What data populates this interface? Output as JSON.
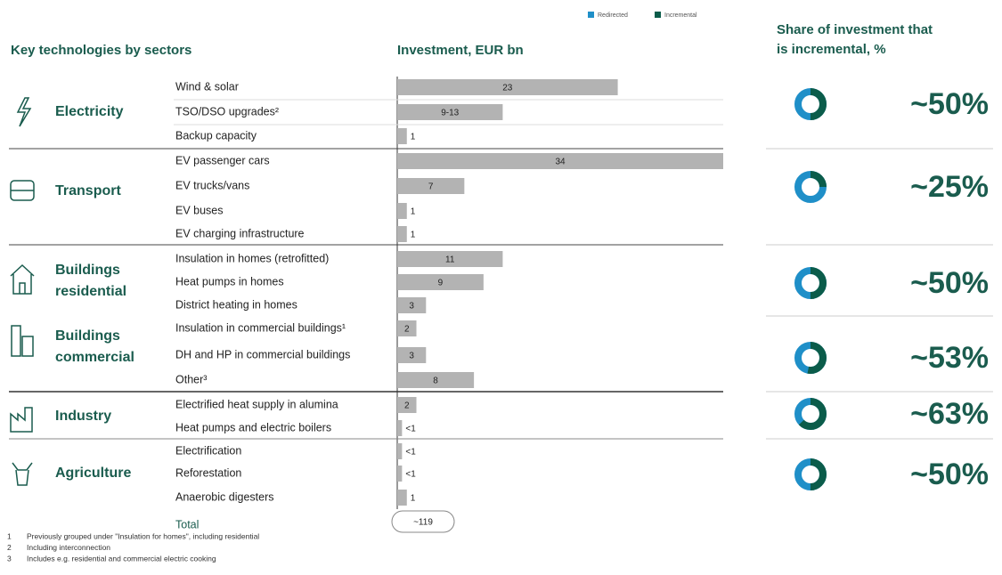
{
  "chart_data": {
    "type": "bar",
    "title": "Investment, EUR bn",
    "categories": [
      "Wind & solar",
      "TSO/DSO upgrades²",
      "Backup capacity",
      "EV passenger cars",
      "EV trucks/vans",
      "EV buses",
      "EV charging infrastructure",
      "Insulation in homes (retrofitted)",
      "Heat pumps in homes",
      "District heating in homes",
      "Insulation in commercial buildings¹",
      "DH and HP in commercial buildings",
      "Other³",
      "Electrified heat supply in alumina",
      "Heat pumps and electric boilers",
      "Electrification",
      "Reforestation",
      "Anaerobic digesters"
    ],
    "values": [
      23,
      11,
      1,
      34,
      7,
      1,
      1,
      11,
      9,
      3,
      2,
      3,
      8,
      2,
      0.5,
      0.5,
      0.5,
      1
    ],
    "value_labels": [
      "23",
      "9-13",
      "1",
      "34",
      "7",
      "1",
      "1",
      "11",
      "9",
      "3",
      "2",
      "3",
      "8",
      "2",
      "<1",
      "<1",
      "<1",
      "1"
    ],
    "color": "#b3b3b3",
    "xlim": [
      0,
      34
    ],
    "total_label": "Total",
    "total_value_label": "~119",
    "legend": [
      {
        "name": "Redirected",
        "color": "#1f8fc8"
      },
      {
        "name": "Incremental",
        "color": "#0b5c4a"
      }
    ]
  },
  "left_header": "Key technologies by sectors",
  "right_header": [
    "Share of investment that",
    "is incremental, %"
  ],
  "sectors": [
    {
      "label": [
        "Electricity"
      ],
      "share": 50,
      "share_label": "~50%"
    },
    {
      "label": [
        "Transport"
      ],
      "share": 25,
      "share_label": "~25%"
    },
    {
      "label": [
        "Buildings",
        "residential"
      ],
      "share": 50,
      "share_label": "~50%"
    },
    {
      "label": [
        "Buildings",
        "commercial"
      ],
      "share": 53,
      "share_label": "~53%"
    },
    {
      "label": [
        "Industry"
      ],
      "share": 63,
      "share_label": "~63%"
    },
    {
      "label": [
        "Agriculture"
      ],
      "share": 50,
      "share_label": "~50%"
    }
  ],
  "footnotes": [
    {
      "num": "1",
      "text": "Previously grouped under \"Insulation for homes\", including residential"
    },
    {
      "num": "2",
      "text": "Including interconnection"
    },
    {
      "num": "3",
      "text": "Includes e.g. residential and commercial electric cooking"
    }
  ]
}
